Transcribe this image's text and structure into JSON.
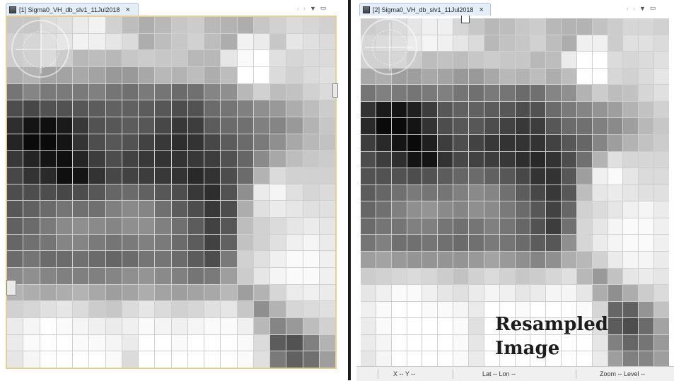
{
  "left_view": {
    "tab_title": "[1] Sigma0_VH_db_slv1_11Jul2018",
    "close_label": "×",
    "controls": {
      "back": "‹",
      "forward": "›",
      "menu": "▼",
      "maximize": "▭"
    },
    "grid_levels": [
      "0.78,0.78,0.86,0.88,0.92,0.95,0.82,0.74,0.68,0.72,0.78,0.8,0.72,0.7,0.68,0.78,0.82,0.86,0.84,0.82",
      "0.82,0.84,0.88,0.9,0.95,0.94,0.9,0.86,0.68,0.74,0.78,0.82,0.74,0.68,0.95,0.92,0.78,0.9,0.88,0.86",
      "0.8,0.82,0.86,0.8,0.72,0.74,0.72,0.78,0.8,0.78,0.78,0.72,0.72,0.9,0.98,1.0,0.88,0.84,0.86,0.86",
      "0.68,0.7,0.64,0.64,0.66,0.64,0.6,0.6,0.66,0.72,0.7,0.74,0.68,0.74,1.0,1.0,0.86,0.82,0.86,0.88",
      "0.46,0.52,0.48,0.48,0.48,0.5,0.46,0.44,0.48,0.46,0.42,0.44,0.52,0.56,0.72,0.82,0.74,0.76,0.82,0.86",
      "0.3,0.28,0.32,0.32,0.34,0.36,0.38,0.38,0.36,0.34,0.3,0.32,0.42,0.46,0.5,0.56,0.6,0.68,0.74,0.8",
      "0.18,0.08,0.06,0.1,0.22,0.32,0.34,0.36,0.34,0.28,0.22,0.24,0.36,0.42,0.44,0.5,0.52,0.6,0.7,0.78",
      "0.14,0.04,0.04,0.08,0.2,0.3,0.34,0.32,0.26,0.22,0.18,0.2,0.28,0.36,0.42,0.48,0.56,0.66,0.72,0.76",
      "0.22,0.14,0.08,0.06,0.14,0.24,0.3,0.26,0.22,0.2,0.2,0.22,0.24,0.32,0.4,0.54,0.66,0.74,0.78,0.8",
      "0.28,0.2,0.16,0.06,0.08,0.2,0.28,0.26,0.24,0.22,0.2,0.16,0.2,0.3,0.42,0.7,0.86,0.82,0.82,0.82",
      "0.3,0.3,0.3,0.28,0.3,0.34,0.4,0.42,0.38,0.34,0.3,0.22,0.18,0.32,0.56,0.92,0.96,0.88,0.84,0.86",
      "0.34,0.38,0.42,0.46,0.44,0.44,0.5,0.54,0.52,0.44,0.36,0.3,0.22,0.3,0.68,0.88,0.92,0.9,0.88,0.88",
      "0.38,0.42,0.48,0.54,0.56,0.54,0.52,0.56,0.56,0.5,0.44,0.36,0.26,0.34,0.74,0.82,0.86,0.9,0.92,0.9",
      "0.4,0.44,0.46,0.52,0.52,0.48,0.46,0.48,0.5,0.48,0.42,0.36,0.26,0.38,0.76,0.82,0.88,0.94,0.96,0.92",
      "0.42,0.46,0.42,0.42,0.44,0.42,0.4,0.42,0.46,0.46,0.42,0.36,0.3,0.48,0.82,0.88,0.94,0.98,0.98,0.94",
      "0.54,0.56,0.52,0.5,0.5,0.5,0.52,0.56,0.58,0.54,0.5,0.46,0.48,0.62,0.8,0.9,0.96,0.98,0.98,0.94",
      "0.7,0.68,0.66,0.68,0.7,0.66,0.62,0.64,0.68,0.64,0.62,0.64,0.66,0.72,0.62,0.7,0.84,0.92,0.94,0.92",
      "0.82,0.84,0.88,0.9,0.86,0.8,0.78,0.86,0.9,0.86,0.82,0.84,0.88,0.9,0.78,0.56,0.7,0.84,0.86,0.88",
      "0.92,0.96,1.0,0.98,0.96,0.94,0.92,0.94,0.98,0.96,0.94,0.96,0.98,0.98,0.94,0.72,0.52,0.6,0.74,0.82",
      "0.92,0.98,1.0,1.0,0.98,0.98,0.96,0.92,1.0,1.0,0.98,1.0,1.0,1.0,0.98,0.86,0.36,0.32,0.5,0.7",
      "0.9,0.96,1.0,1.0,1.0,1.0,0.98,0.86,1.0,1.0,1.0,1.0,1.0,1.0,0.98,0.88,0.48,0.38,0.44,0.62"
    ]
  },
  "right_view": {
    "tab_title": "[2] Sigma0_VH_db_slv1_11Jul2018",
    "close_label": "×",
    "controls": {
      "back": "‹",
      "forward": "›",
      "menu": "▼",
      "maximize": "▭"
    },
    "overlay_line1": "Resampled",
    "overlay_line2": "Image",
    "status": {
      "xy": "X  -- Y  --",
      "latlon": "Lat   -- Lon   --",
      "zoom": "Zoom -- Level --"
    },
    "grid_levels": [
      "0.8,0.82,0.86,0.9,0.94,0.94,0.84,0.78,0.72,0.74,0.78,0.8,0.72,0.7,0.7,0.76,0.8,0.84,0.84,0.82",
      "0.84,0.86,0.88,0.92,0.96,0.94,0.9,0.86,0.72,0.76,0.78,0.82,0.74,0.68,0.94,0.94,0.8,0.88,0.88,0.86",
      "0.82,0.82,0.84,0.8,0.74,0.76,0.74,0.78,0.8,0.78,0.78,0.72,0.74,0.92,1.0,1.0,0.86,0.84,0.86,0.88",
      "0.66,0.68,0.62,0.62,0.66,0.64,0.6,0.6,0.66,0.72,0.7,0.74,0.68,0.74,1.0,1.0,0.84,0.82,0.86,0.9",
      "0.46,0.5,0.48,0.46,0.48,0.5,0.46,0.44,0.48,0.46,0.42,0.44,0.52,0.56,0.7,0.8,0.74,0.76,0.84,0.88",
      "0.2,0.1,0.08,0.12,0.24,0.34,0.38,0.38,0.36,0.34,0.3,0.32,0.42,0.48,0.52,0.58,0.62,0.7,0.76,0.82",
      "0.16,0.04,0.04,0.08,0.2,0.3,0.34,0.34,0.3,0.26,0.22,0.24,0.34,0.42,0.44,0.5,0.54,0.62,0.72,0.78",
      "0.24,0.16,0.08,0.04,0.12,0.24,0.3,0.26,0.22,0.2,0.2,0.2,0.26,0.34,0.4,0.52,0.62,0.7,0.76,0.8",
      "0.3,0.24,0.18,0.08,0.08,0.2,0.28,0.26,0.24,0.22,0.18,0.16,0.2,0.3,0.44,0.7,0.88,0.84,0.84,0.84",
      "0.32,0.32,0.32,0.3,0.32,0.36,0.4,0.42,0.38,0.34,0.28,0.2,0.2,0.34,0.62,0.94,0.98,0.9,0.86,0.86",
      "0.36,0.4,0.44,0.48,0.46,0.46,0.5,0.54,0.52,0.44,0.36,0.28,0.22,0.34,0.74,0.9,0.92,0.9,0.88,0.88",
      "0.4,0.44,0.5,0.56,0.58,0.54,0.52,0.56,0.54,0.48,0.42,0.34,0.26,0.4,0.82,0.86,0.9,0.94,0.96,0.92",
      "0.42,0.46,0.46,0.5,0.5,0.46,0.44,0.46,0.5,0.46,0.4,0.32,0.24,0.44,0.84,0.9,0.96,0.98,0.98,0.94",
      "0.46,0.5,0.44,0.44,0.46,0.44,0.42,0.44,0.48,0.46,0.42,0.36,0.34,0.56,0.84,0.92,0.96,0.98,0.98,0.94",
      "0.62,0.64,0.6,0.58,0.58,0.58,0.58,0.6,0.64,0.6,0.56,0.52,0.56,0.68,0.72,0.82,0.92,0.96,0.96,0.92",
      "0.8,0.82,0.84,0.86,0.84,0.8,0.76,0.82,0.86,0.82,0.78,0.8,0.84,0.88,0.72,0.6,0.76,0.9,0.92,0.9",
      "0.9,0.94,0.98,0.98,0.94,0.9,0.88,0.92,0.96,0.94,0.9,0.92,0.96,0.96,0.9,0.68,0.56,0.68,0.8,0.86",
      "0.94,0.98,1.0,1.0,0.98,0.98,0.96,0.92,1.0,1.0,0.98,1.0,1.0,1.0,0.98,0.84,0.4,0.38,0.58,0.76",
      "0.92,0.98,1.0,1.0,1.0,1.0,0.98,0.88,1.0,1.0,1.0,1.0,1.0,1.0,0.98,0.88,0.36,0.3,0.42,0.64",
      "0.92,0.96,1.0,1.0,1.0,1.0,0.98,0.9,1.0,1.0,1.0,1.0,1.0,1.0,1.0,0.9,0.5,0.4,0.46,0.6",
      "0.9,0.96,1.0,1.0,1.0,1.0,0.98,0.92,1.0,1.0,1.0,1.0,1.0,1.0,1.0,0.92,0.62,0.5,0.52,0.62"
    ]
  }
}
